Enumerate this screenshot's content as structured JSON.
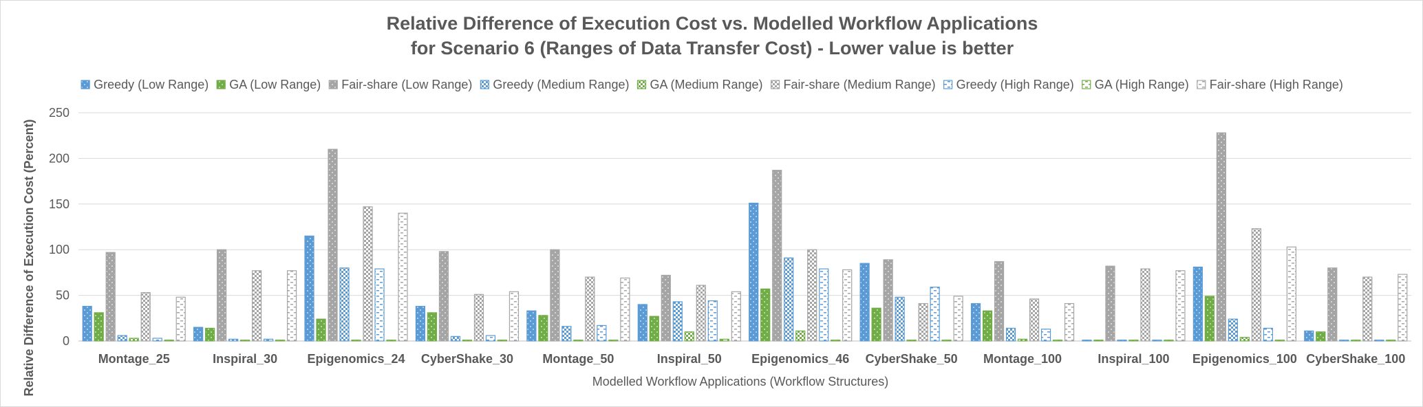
{
  "chart_data": {
    "type": "bar",
    "title": "Relative Difference of Execution Cost vs. Modelled Workflow Applications",
    "subtitle": "for Scenario 6 (Ranges of Data Transfer Cost) - Lower value is better",
    "xlabel": "Modelled Workflow Applications (Workflow Structures)",
    "ylabel": "Relative Difference of Execution Cost (Percent)",
    "ylim": [
      0,
      250
    ],
    "yticks": [
      0,
      50,
      100,
      150,
      200,
      250
    ],
    "grid": true,
    "legend_position": "top",
    "categories": [
      "Montage_25",
      "Inspiral_30",
      "Epigenomics_24",
      "CyberShake_30",
      "Montage_50",
      "Inspiral_50",
      "Epigenomics_46",
      "CyberShake_50",
      "Montage_100",
      "Inspiral_100",
      "Epigenomics_100",
      "CyberShake_100"
    ],
    "series": [
      {
        "name": "Greedy (Low Range)",
        "color": "#5b9bd5",
        "pattern": "dots",
        "values": [
          38,
          15,
          115,
          38,
          33,
          40,
          151,
          85,
          41,
          1,
          81,
          11
        ]
      },
      {
        "name": "GA (Low Range)",
        "color": "#70ad47",
        "pattern": "dots",
        "values": [
          31,
          14,
          24,
          31,
          28,
          27,
          57,
          36,
          33,
          1,
          49,
          10
        ]
      },
      {
        "name": "Fair-share (Low Range)",
        "color": "#a5a5a5",
        "pattern": "dots",
        "values": [
          97,
          100,
          210,
          98,
          100,
          72,
          187,
          89,
          87,
          82,
          228,
          80
        ]
      },
      {
        "name": "Greedy (Medium Range)",
        "color": "#5b9bd5",
        "pattern": "checker",
        "values": [
          6,
          2,
          80,
          5,
          16,
          43,
          91,
          48,
          14,
          1,
          24,
          1
        ]
      },
      {
        "name": "GA (Medium Range)",
        "color": "#70ad47",
        "pattern": "checker",
        "values": [
          3,
          1,
          1,
          1,
          1,
          10,
          11,
          1,
          2,
          1,
          4,
          1
        ]
      },
      {
        "name": "Fair-share (Medium Range)",
        "color": "#a5a5a5",
        "pattern": "checker",
        "values": [
          53,
          77,
          147,
          51,
          70,
          61,
          100,
          41,
          46,
          79,
          123,
          70
        ]
      },
      {
        "name": "Greedy (High Range)",
        "color": "#5b9bd5",
        "pattern": "hdash",
        "values": [
          3,
          2,
          79,
          6,
          17,
          44,
          79,
          59,
          13,
          1,
          14,
          1
        ]
      },
      {
        "name": "GA (High Range)",
        "color": "#70ad47",
        "pattern": "hdash",
        "values": [
          1,
          1,
          1,
          1,
          1,
          2,
          1,
          1,
          1,
          1,
          1,
          1
        ]
      },
      {
        "name": "Fair-share (High Range)",
        "color": "#a5a5a5",
        "pattern": "hdash",
        "values": [
          48,
          77,
          140,
          54,
          69,
          54,
          78,
          49,
          41,
          77,
          103,
          73
        ]
      }
    ]
  }
}
